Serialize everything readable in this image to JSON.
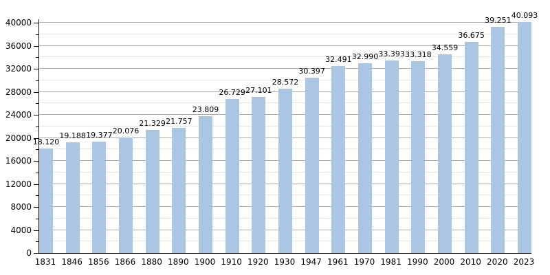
{
  "chart_data": {
    "type": "bar",
    "title": "",
    "xlabel": "",
    "ylabel": "",
    "categories": [
      "1831",
      "1846",
      "1856",
      "1866",
      "1880",
      "1890",
      "1900",
      "1910",
      "1920",
      "1930",
      "1947",
      "1961",
      "1970",
      "1981",
      "1990",
      "2000",
      "2010",
      "2020",
      "2023"
    ],
    "values": [
      18120,
      19188,
      19377,
      20076,
      21329,
      21757,
      23809,
      26729,
      27101,
      28572,
      30397,
      32491,
      32990,
      33393,
      33318,
      34559,
      36675,
      39251,
      40093
    ],
    "bar_labels": [
      "18.120",
      "19.188",
      "19.377",
      "20.076",
      "21.329",
      "21.757",
      "23.809",
      "26.729",
      "27.101",
      "28.572",
      "30.397",
      "32.491",
      "32.990",
      "33.393",
      "33.318",
      "34.559",
      "36.675",
      "39.251",
      "40.093"
    ],
    "ylim": [
      0,
      40600
    ],
    "yticks_major": [
      0,
      4000,
      8000,
      12000,
      16000,
      20000,
      24000,
      28000,
      32000,
      36000,
      40000
    ],
    "ytick_minor_step": 2000,
    "grid": true,
    "legend": "none",
    "colors": {
      "bar_fill": "#abc6e2",
      "major_grid": "#ababab",
      "minor_grid": "#e4e4e4",
      "axis": "#000000",
      "text": "#000000",
      "background": "#ffffff"
    }
  }
}
